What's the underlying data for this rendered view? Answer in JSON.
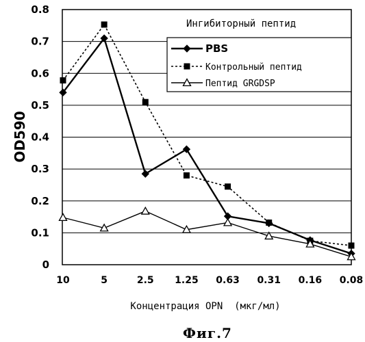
{
  "chart_data": {
    "type": "line",
    "title": "Ингибиторный пептид",
    "xlabel": "Концентрация OPN  (мкг/мл)",
    "ylabel": "OD590",
    "caption": "Фиг.7",
    "categories": [
      "10",
      "5",
      "2.5",
      "1.25",
      "0.63",
      "0.31",
      "0.16",
      "0.08"
    ],
    "ylim": [
      0,
      0.8
    ],
    "yticks": [
      "0",
      "0.1",
      "0.2",
      "0.3",
      "0.4",
      "0.5",
      "0.6",
      "0.7",
      "0.8"
    ],
    "grid": true,
    "legend_position": "top-right",
    "series": [
      {
        "name": "PBS",
        "marker": "diamond",
        "line": "solid",
        "values": [
          0.54,
          0.71,
          0.285,
          0.362,
          0.152,
          0.13,
          0.077,
          0.035
        ]
      },
      {
        "name": "Контрольный пептид",
        "marker": "square",
        "line": "dotted",
        "values": [
          0.578,
          0.753,
          0.51,
          0.28,
          0.245,
          0.132,
          0.075,
          0.06
        ]
      },
      {
        "name": "Пептид GRGDSP",
        "marker": "triangle-open",
        "line": "solid",
        "values": [
          0.148,
          0.115,
          0.168,
          0.11,
          0.132,
          0.09,
          0.065,
          0.025
        ]
      }
    ]
  }
}
